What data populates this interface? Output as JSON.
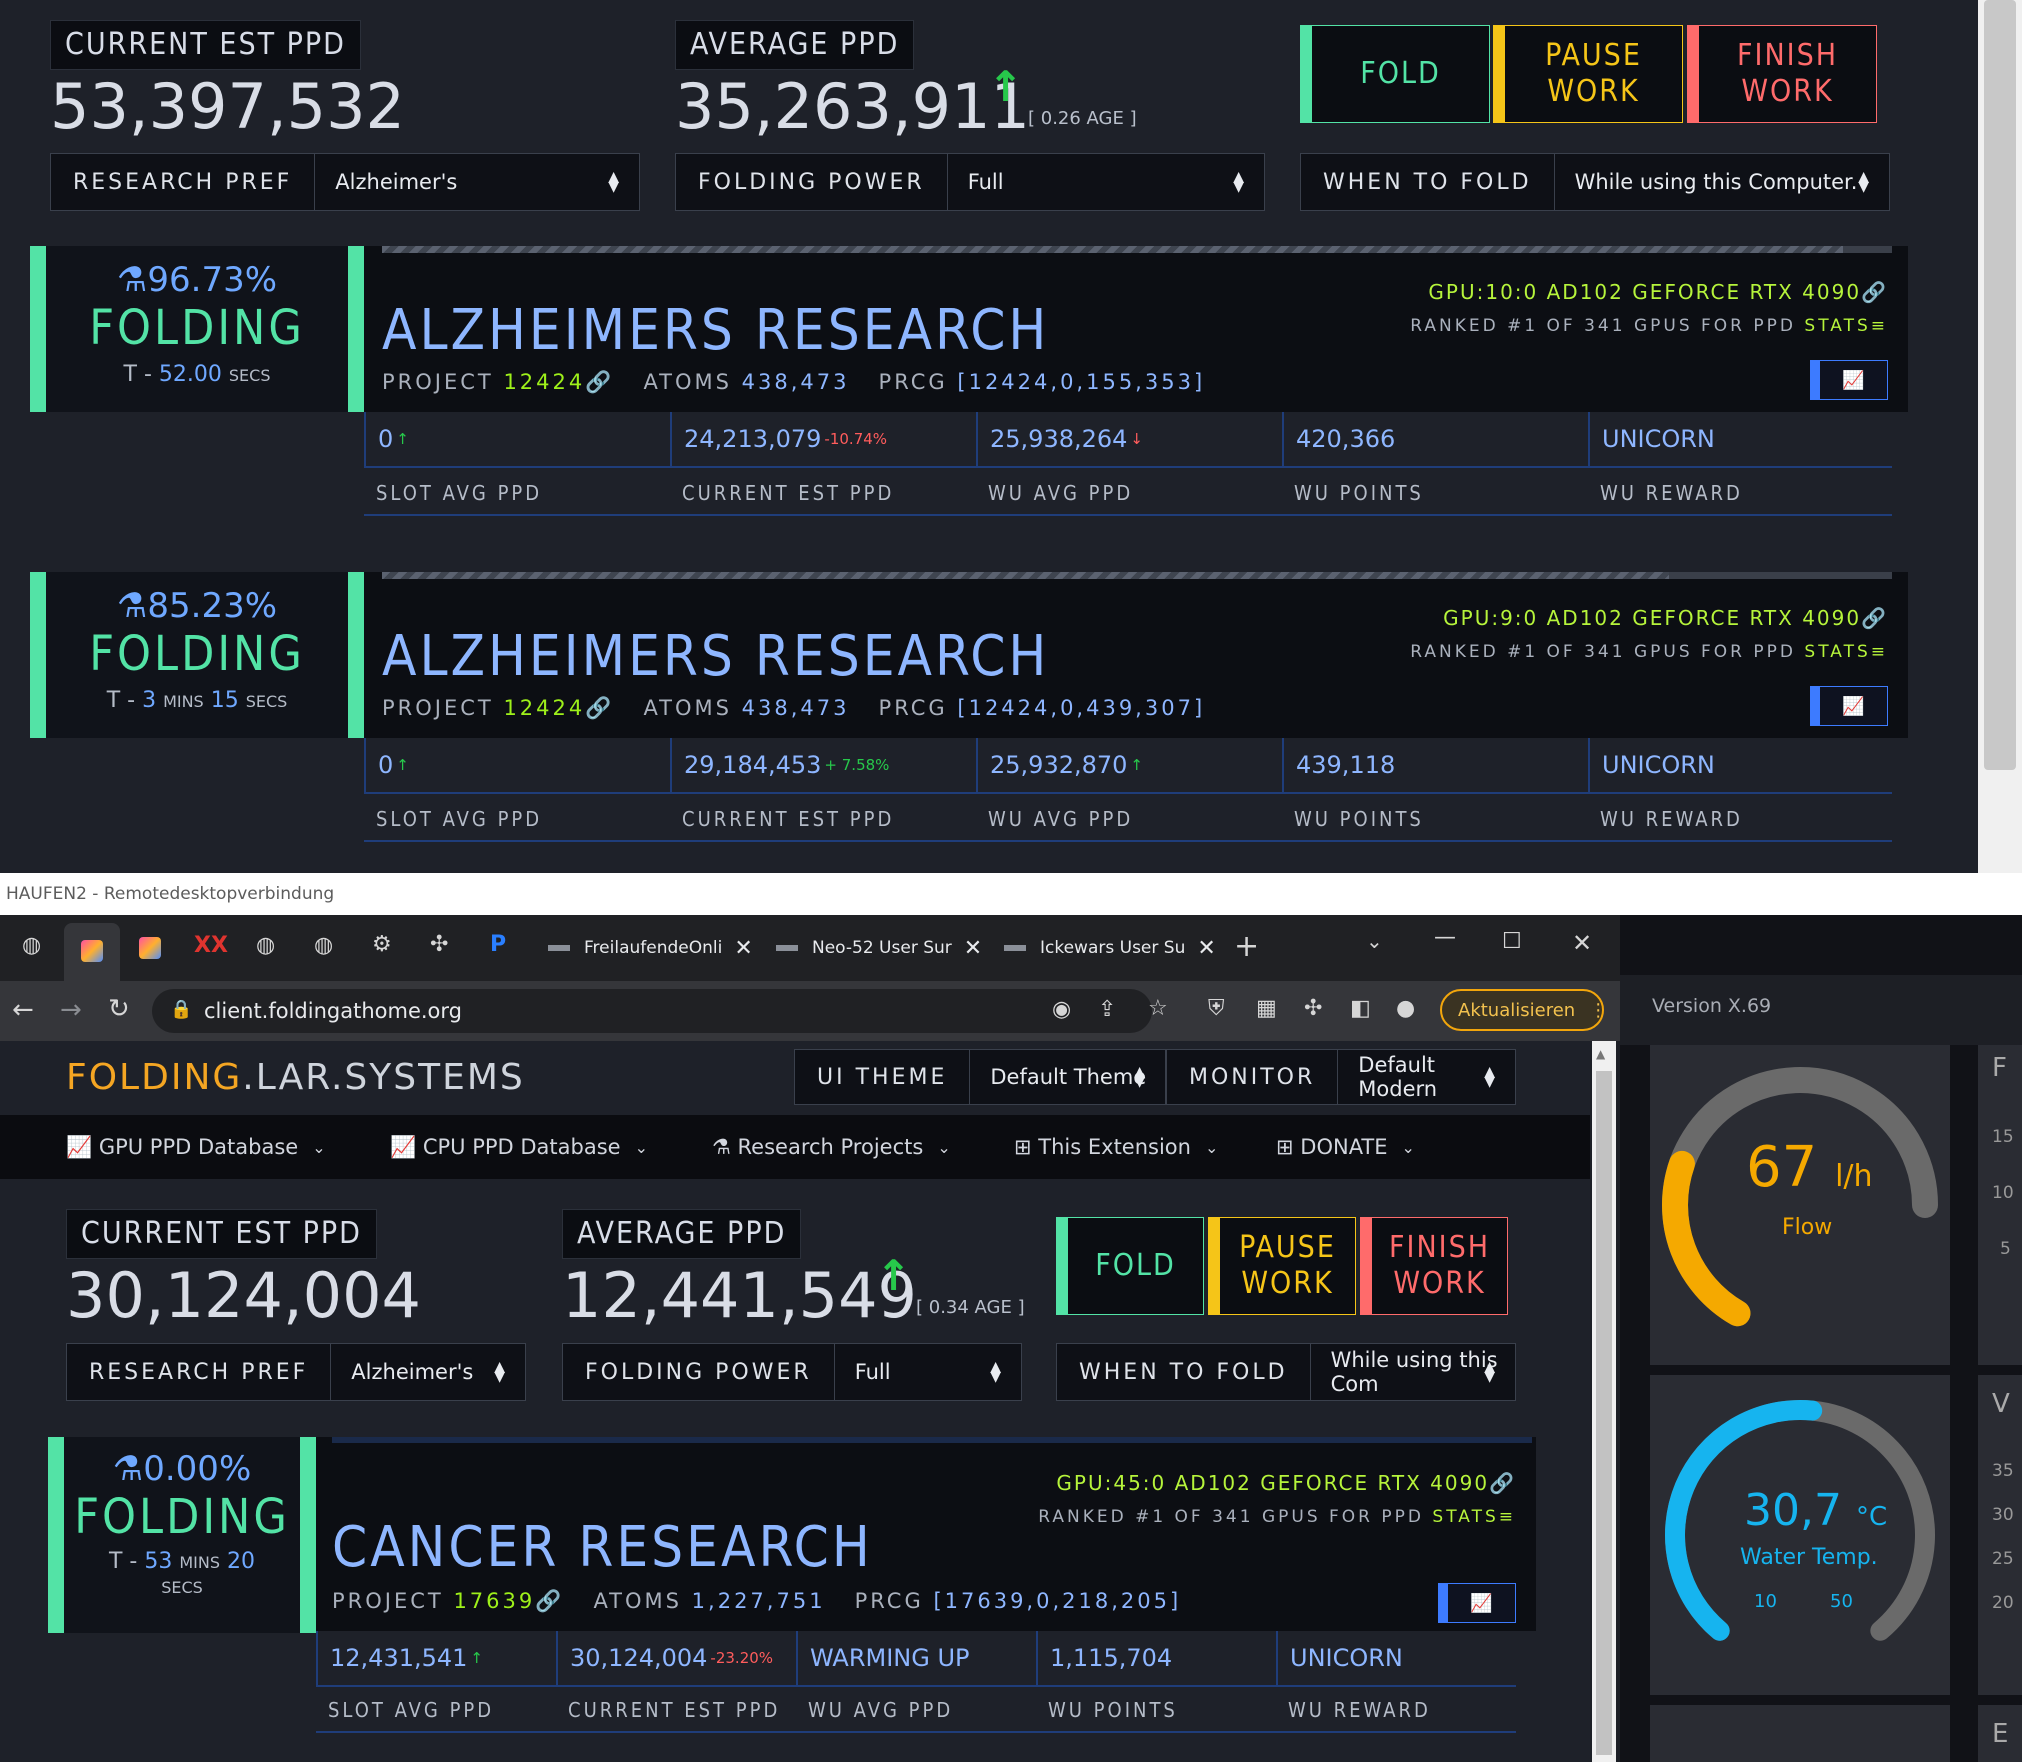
{
  "top": {
    "current_est_label": "CURRENT EST PPD",
    "current_est_value": "53,397,532",
    "average_label": "AVERAGE PPD",
    "average_value": "35,263,911",
    "age": "[ 0.26 AGE ]",
    "buttons": {
      "fold": "FOLD",
      "pause": "PAUSE WORK",
      "finish": "FINISH WORK"
    },
    "research_pref_label": "RESEARCH PREF",
    "research_pref_value": "Alzheimer's",
    "folding_power_label": "FOLDING POWER",
    "folding_power_value": "Full",
    "when_label": "WHEN TO FOLD",
    "when_value": "While using this Computer.",
    "slots": [
      {
        "percent": "96.73%",
        "progress": 0.9673,
        "status": "FOLDING",
        "eta_prefix": "T - ",
        "eta_num1": "52.00",
        "eta_unit1": "SECS",
        "eta_num2": "",
        "eta_unit2": "",
        "title": "ALZHEIMERS RESEARCH",
        "project_label": "PROJECT",
        "project": "12424",
        "atoms_label": "ATOMS",
        "atoms": "438,473",
        "prcg_label": "PRCG",
        "prcg": "[12424,0,155,353]",
        "gpu": "GPU:10:0 AD102 GEFORCE RTX 4090",
        "rank_text": "RANKED #1 OF 341 GPUS FOR PPD",
        "stats": "STATS",
        "cells": [
          {
            "value": "0",
            "delta": "↑",
            "delta_color": "green"
          },
          {
            "value": "24,213,079",
            "delta": "-10.74%",
            "delta_color": "red"
          },
          {
            "value": "25,938,264",
            "delta": "↓",
            "delta_color": "red"
          },
          {
            "value": "420,366",
            "delta": "",
            "delta_color": ""
          },
          {
            "value": "UNICORN",
            "delta": "",
            "delta_color": ""
          }
        ],
        "labels": [
          "SLOT AVG PPD",
          "CURRENT EST PPD",
          "WU AVG PPD",
          "WU POINTS",
          "WU REWARD"
        ]
      },
      {
        "percent": "85.23%",
        "progress": 0.8523,
        "status": "FOLDING",
        "eta_prefix": "T - ",
        "eta_num1": "3",
        "eta_unit1": "MINS",
        "eta_num2": "15",
        "eta_unit2": "SECS",
        "title": "ALZHEIMERS RESEARCH",
        "project_label": "PROJECT",
        "project": "12424",
        "atoms_label": "ATOMS",
        "atoms": "438,473",
        "prcg_label": "PRCG",
        "prcg": "[12424,0,439,307]",
        "gpu": "GPU:9:0 AD102 GEFORCE RTX 4090",
        "rank_text": "RANKED #1 OF 341 GPUS FOR PPD",
        "stats": "STATS",
        "cells": [
          {
            "value": "0",
            "delta": "↑",
            "delta_color": "green"
          },
          {
            "value": "29,184,453",
            "delta": "+ 7.58%",
            "delta_color": "green"
          },
          {
            "value": "25,932,870",
            "delta": "↑",
            "delta_color": "green"
          },
          {
            "value": "439,118",
            "delta": "",
            "delta_color": ""
          },
          {
            "value": "UNICORN",
            "delta": "",
            "delta_color": ""
          }
        ],
        "labels": [
          "SLOT AVG PPD",
          "CURRENT EST PPD",
          "WU AVG PPD",
          "WU POINTS",
          "WU REWARD"
        ]
      }
    ]
  },
  "rdp": {
    "title": "HAUFEN2 - Remotedesktopverbindung"
  },
  "browser": {
    "tabs": [
      {
        "label": "FreilaufendeOnli"
      },
      {
        "label": "Neo-52 User Sur"
      },
      {
        "label": "Ickewars User Su"
      }
    ],
    "url": "client.foldingathome.org",
    "update_label": "Aktualisieren"
  },
  "page": {
    "brand_a": "FOLDING",
    "brand_b": ".LAR.SYSTEMS",
    "ui_theme_label": "UI THEME",
    "ui_theme_value": "Default Theme",
    "monitor_label": "MONITOR",
    "monitor_value": "Default Modern",
    "nav": [
      "GPU PPD Database",
      "CPU PPD Database",
      "Research Projects",
      "This Extension",
      "DONATE"
    ],
    "current_est_label": "CURRENT EST PPD",
    "current_est_value": "30,124,004",
    "average_label": "AVERAGE PPD",
    "average_value": "12,441,549",
    "age": "[ 0.34 AGE ]",
    "buttons": {
      "fold": "FOLD",
      "pause": "PAUSE WORK",
      "finish": "FINISH WORK"
    },
    "research_pref_label": "RESEARCH PREF",
    "research_pref_value": "Alzheimer's",
    "folding_power_label": "FOLDING POWER",
    "folding_power_value": "Full",
    "when_label": "WHEN TO FOLD",
    "when_value": "While using this Com",
    "slot": {
      "percent": "0.00%",
      "status": "FOLDING",
      "eta_prefix": "T - ",
      "eta_num1": "53",
      "eta_unit1": "MINS",
      "eta_num2": "20",
      "eta_unit2": "SECS",
      "title": "CANCER RESEARCH",
      "project_label": "PROJECT",
      "project": "17639",
      "atoms_label": "ATOMS",
      "atoms": "1,227,751",
      "prcg_label": "PRCG",
      "prcg": "[17639,0,218,205]",
      "gpu": "GPU:45:0 AD102 GEFORCE RTX 4090",
      "rank_text": "RANKED #1 OF 341 GPUS FOR PPD",
      "stats": "STATS",
      "cells": [
        {
          "value": "12,431,541",
          "delta": "↑",
          "delta_color": "green"
        },
        {
          "value": "30,124,004",
          "delta": "-23.20%",
          "delta_color": "red"
        },
        {
          "value": "WARMING UP",
          "delta": "",
          "delta_color": ""
        },
        {
          "value": "1,115,704",
          "delta": "",
          "delta_color": ""
        },
        {
          "value": "UNICORN",
          "delta": "",
          "delta_color": ""
        }
      ],
      "labels": [
        "SLOT AVG PPD",
        "CURRENT EST PPD",
        "WU AVG PPD",
        "WU POINTS",
        "WU REWARD"
      ]
    }
  },
  "side_app": {
    "version": "Version X.69",
    "flow": {
      "value": "67",
      "unit": "l/h",
      "label": "Flow",
      "level": 0.67
    },
    "temp": {
      "value": "30,7",
      "unit": "°C",
      "label": "Water Temp.",
      "min": "10",
      "max": "50",
      "level": 0.52
    },
    "side_ticks": [
      "15",
      "10",
      "5",
      "35",
      "30",
      "25",
      "20"
    ],
    "side_letters": [
      "F",
      "V",
      "E"
    ],
    "colors": {
      "flow": "#f5a900",
      "temp": "#16b4ef",
      "track": "#6a6a6a"
    }
  }
}
